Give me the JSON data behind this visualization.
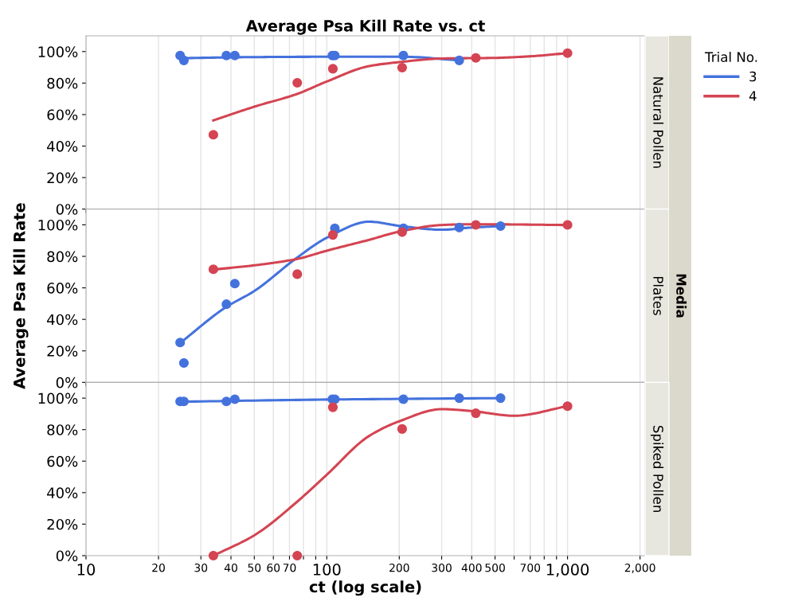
{
  "chart_data": [
    {
      "type": "scatter",
      "title": "Average Psa Kill Rate vs. ct",
      "annotations": [
        "Natural Pollen"
      ],
      "legend": "right",
      "legend_title": "Trial No.",
      "log": "x",
      "grid": "x",
      "tick_labels": "y",
      "xlim": [
        10,
        2100
      ],
      "xticks": [
        {
          "value": 10,
          "label": null
        },
        {
          "value": 20,
          "label": null
        },
        {
          "value": 30,
          "label": null
        },
        {
          "value": 40,
          "label": null
        },
        {
          "value": 50,
          "label": null
        },
        {
          "value": 60,
          "label": null
        },
        {
          "value": 70,
          "label": null
        },
        {
          "value": 80,
          "label": null
        },
        {
          "value": 90,
          "label": null
        },
        {
          "value": 100,
          "label": null
        },
        {
          "value": 200,
          "label": null
        },
        {
          "value": 300,
          "label": null
        },
        {
          "value": 400,
          "label": null
        },
        {
          "value": 500,
          "label": null
        },
        {
          "value": 600,
          "label": null
        },
        {
          "value": 700,
          "label": null
        },
        {
          "value": 800,
          "label": null
        },
        {
          "value": 900,
          "label": null
        },
        {
          "value": 1000,
          "label": null
        },
        {
          "value": 2000,
          "label": null
        }
      ],
      "ylim": [
        0,
        110
      ],
      "yticks": [
        {
          "value": 0,
          "label": "0%"
        },
        {
          "value": 20,
          "label": "20%"
        },
        {
          "value": 40,
          "label": "40%"
        },
        {
          "value": 60,
          "label": "60%"
        },
        {
          "value": 80,
          "label": "80%"
        },
        {
          "value": 100,
          "label": "100%"
        }
      ],
      "series": [
        {
          "type": "line",
          "name": "3",
          "color": "#4472dd",
          "x": [
            24.6,
            50,
            100,
            208,
            355
          ],
          "values": [
            95.8,
            96.5,
            96.7,
            96.7,
            94.4
          ]
        },
        {
          "type": "line",
          "name": "4",
          "color": "#d44452",
          "x": [
            33.8,
            50,
            75,
            100,
            150,
            200,
            300,
            500,
            700,
            1000
          ],
          "values": [
            56.3,
            65,
            73,
            81,
            90.8,
            93.3,
            95.6,
            96,
            97,
            99
          ]
        },
        {
          "color": "#4472dd",
          "marker": "circle",
          "x": [
            24.6,
            25.5,
            38.3,
            41.5,
            105.5,
            108,
            208,
            355
          ],
          "values": [
            97.5,
            94.4,
            97.5,
            97.5,
            97.5,
            97.5,
            97.5,
            94.4
          ]
        },
        {
          "color": "#d44452",
          "marker": "circle",
          "x": [
            33.8,
            75.4,
            106,
            205.6,
            416,
            1000
          ],
          "values": [
            47.2,
            80.2,
            89.1,
            89.8,
            96,
            99
          ]
        }
      ]
    },
    {
      "type": "scatter",
      "ylabel": "Average Psa Kill Rate",
      "annotations": [
        "Plates",
        "Media"
      ],
      "log": "x",
      "grid": "x",
      "tick_labels": "y",
      "xlim": [
        10,
        2100
      ],
      "xticks": [
        {
          "value": 10,
          "label": null
        },
        {
          "value": 20,
          "label": null
        },
        {
          "value": 30,
          "label": null
        },
        {
          "value": 40,
          "label": null
        },
        {
          "value": 50,
          "label": null
        },
        {
          "value": 60,
          "label": null
        },
        {
          "value": 70,
          "label": null
        },
        {
          "value": 80,
          "label": null
        },
        {
          "value": 90,
          "label": null
        },
        {
          "value": 100,
          "label": null
        },
        {
          "value": 200,
          "label": null
        },
        {
          "value": 300,
          "label": null
        },
        {
          "value": 400,
          "label": null
        },
        {
          "value": 500,
          "label": null
        },
        {
          "value": 600,
          "label": null
        },
        {
          "value": 700,
          "label": null
        },
        {
          "value": 800,
          "label": null
        },
        {
          "value": 900,
          "label": null
        },
        {
          "value": 1000,
          "label": null
        },
        {
          "value": 2000,
          "label": null
        }
      ],
      "ylim": [
        0,
        110
      ],
      "yticks": [
        {
          "value": 0,
          "label": "0%"
        },
        {
          "value": 20,
          "label": "20%"
        },
        {
          "value": 40,
          "label": "40%"
        },
        {
          "value": 60,
          "label": "60%"
        },
        {
          "value": 80,
          "label": "80%"
        },
        {
          "value": 100,
          "label": "100%"
        }
      ],
      "series": [
        {
          "type": "line",
          "color": "#4472dd",
          "x": [
            24.6,
            38,
            50,
            75,
            100,
            150,
            200,
            300,
            400,
            527
          ],
          "values": [
            25,
            47.6,
            58,
            79,
            91.8,
            102,
            99.4,
            96.9,
            98.3,
            99.2
          ]
        },
        {
          "type": "line",
          "color": "#d44452",
          "x": [
            33.8,
            50,
            75,
            100,
            150,
            200,
            300,
            400,
            1000
          ],
          "values": [
            71.6,
            74.3,
            78.3,
            83.6,
            90.5,
            95.7,
            99.9,
            100.4,
            99.9
          ]
        },
        {
          "color": "#4472dd",
          "marker": "circle",
          "x": [
            24.6,
            25.5,
            38.3,
            41.5,
            108,
            208,
            355,
            527
          ],
          "values": [
            25.3,
            12.3,
            49.6,
            62.7,
            97.8,
            97.8,
            98.3,
            99.2
          ]
        },
        {
          "color": "#d44452",
          "marker": "circle",
          "x": [
            33.8,
            75.4,
            106,
            205.6,
            416,
            1000
          ],
          "values": [
            71.8,
            68.7,
            93.6,
            95.4,
            100,
            100
          ]
        }
      ]
    },
    {
      "type": "scatter",
      "xlabel": "ct (log scale)",
      "annotations": [
        "Spiked Pollen"
      ],
      "log": "x",
      "grid": "x",
      "xlim": [
        10,
        2100
      ],
      "xticks": [
        {
          "value": 10,
          "label": "10"
        },
        {
          "value": 20,
          "label": "20"
        },
        {
          "value": 30,
          "label": "30"
        },
        {
          "value": 40,
          "label": "40"
        },
        {
          "value": 50,
          "label": "50"
        },
        {
          "value": 60,
          "label": "60"
        },
        {
          "value": 70,
          "label": "70"
        },
        {
          "value": 80,
          "label": null
        },
        {
          "value": 90,
          "label": null
        },
        {
          "value": 100,
          "label": "100"
        },
        {
          "value": 200,
          "label": "200"
        },
        {
          "value": 300,
          "label": "300"
        },
        {
          "value": 400,
          "label": "400"
        },
        {
          "value": 500,
          "label": "500"
        },
        {
          "value": 600,
          "label": null
        },
        {
          "value": 700,
          "label": "700"
        },
        {
          "value": 800,
          "label": null
        },
        {
          "value": 900,
          "label": null
        },
        {
          "value": 1000,
          "label": "1,000"
        },
        {
          "value": 2000,
          "label": "2,000"
        }
      ],
      "ylim": [
        0,
        110
      ],
      "yticks": [
        {
          "value": 0,
          "label": "0%"
        },
        {
          "value": 20,
          "label": "20%"
        },
        {
          "value": 40,
          "label": "40%"
        },
        {
          "value": 60,
          "label": "60%"
        },
        {
          "value": 80,
          "label": "80%"
        },
        {
          "value": 100,
          "label": "100%"
        }
      ],
      "series": [
        {
          "type": "line",
          "color": "#4472dd",
          "x": [
            24.6,
            100,
            527
          ],
          "values": [
            97.7,
            99.1,
            100
          ]
        },
        {
          "type": "line",
          "color": "#d44452",
          "x": [
            33.8,
            50,
            75,
            100,
            150,
            200,
            300,
            400,
            600,
            1000
          ],
          "values": [
            0,
            12.9,
            34,
            51.4,
            76,
            85.3,
            93,
            91.8,
            88.8,
            94.9
          ]
        },
        {
          "color": "#4472dd",
          "marker": "circle",
          "x": [
            24.6,
            25.5,
            38.3,
            41.5,
            105.5,
            108,
            208,
            355,
            527
          ],
          "values": [
            97.9,
            97.9,
            97.9,
            99.3,
            99.3,
            99.3,
            99.3,
            100,
            100
          ]
        },
        {
          "color": "#d44452",
          "marker": "circle",
          "x": [
            33.8,
            75.4,
            106,
            205.6,
            416,
            1000
          ],
          "values": [
            0,
            0,
            94.2,
            80.4,
            90.4,
            94.9
          ]
        }
      ]
    }
  ]
}
